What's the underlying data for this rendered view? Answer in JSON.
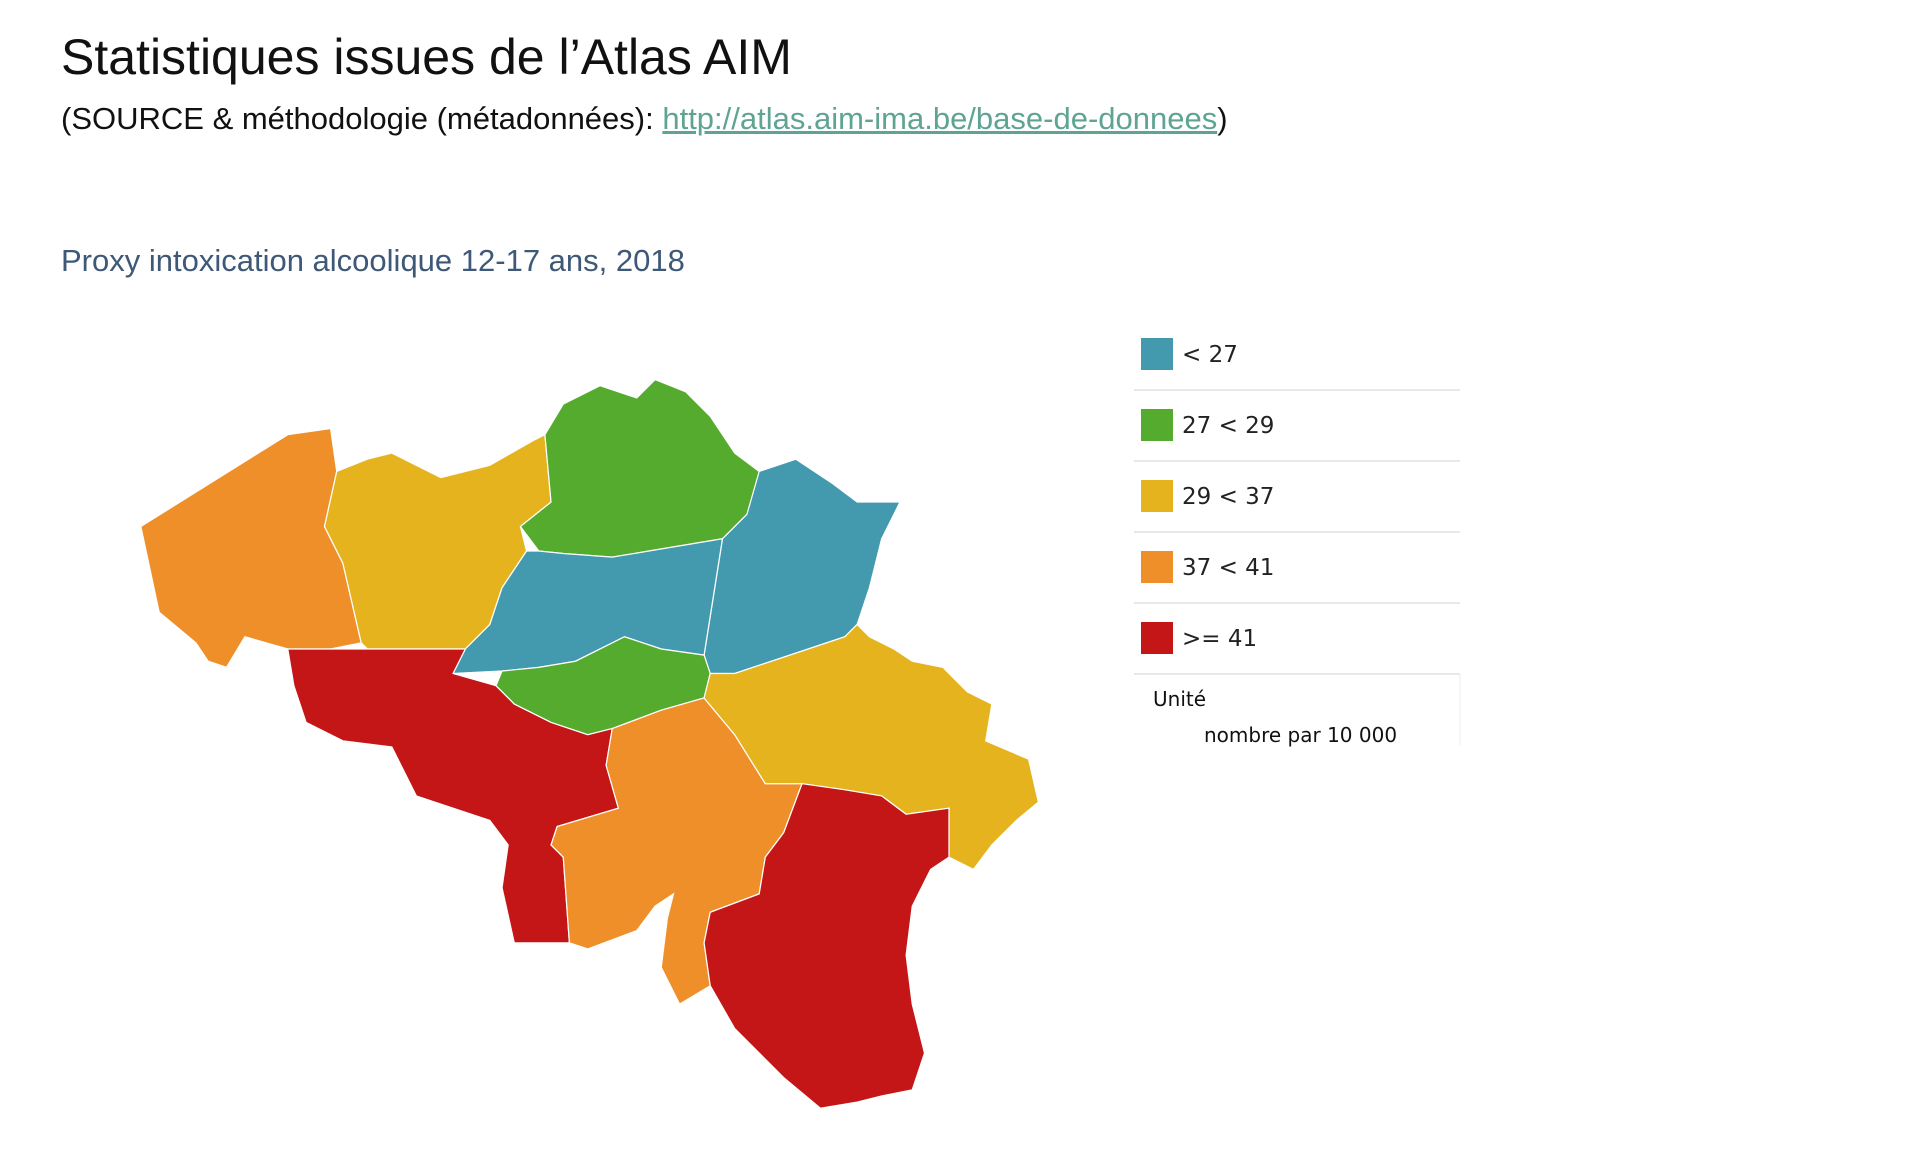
{
  "header": {
    "title": "Statistiques issues de l’Atlas AIM",
    "source_prefix": "(SOURCE & méthodologie (métadonnées): ",
    "link": "http://atlas.aim-ima.be/base-de-donnees",
    "source_suffix": ")"
  },
  "map": {
    "title": "Proxy intoxication alcoolique 12-17 ans, 2018",
    "legend": [
      {
        "label": "< 27",
        "color": "#4399ae"
      },
      {
        "label": "27 < 29",
        "color": "#55ab2e"
      },
      {
        "label": "29 < 37",
        "color": "#e4b31e"
      },
      {
        "label": "37 < 41",
        "color": "#ef8f2a"
      },
      {
        "label": ">= 41",
        "color": "#c41517"
      }
    ],
    "unit_label": "Unité",
    "unit_value": "nombre par 10 000"
  }
}
